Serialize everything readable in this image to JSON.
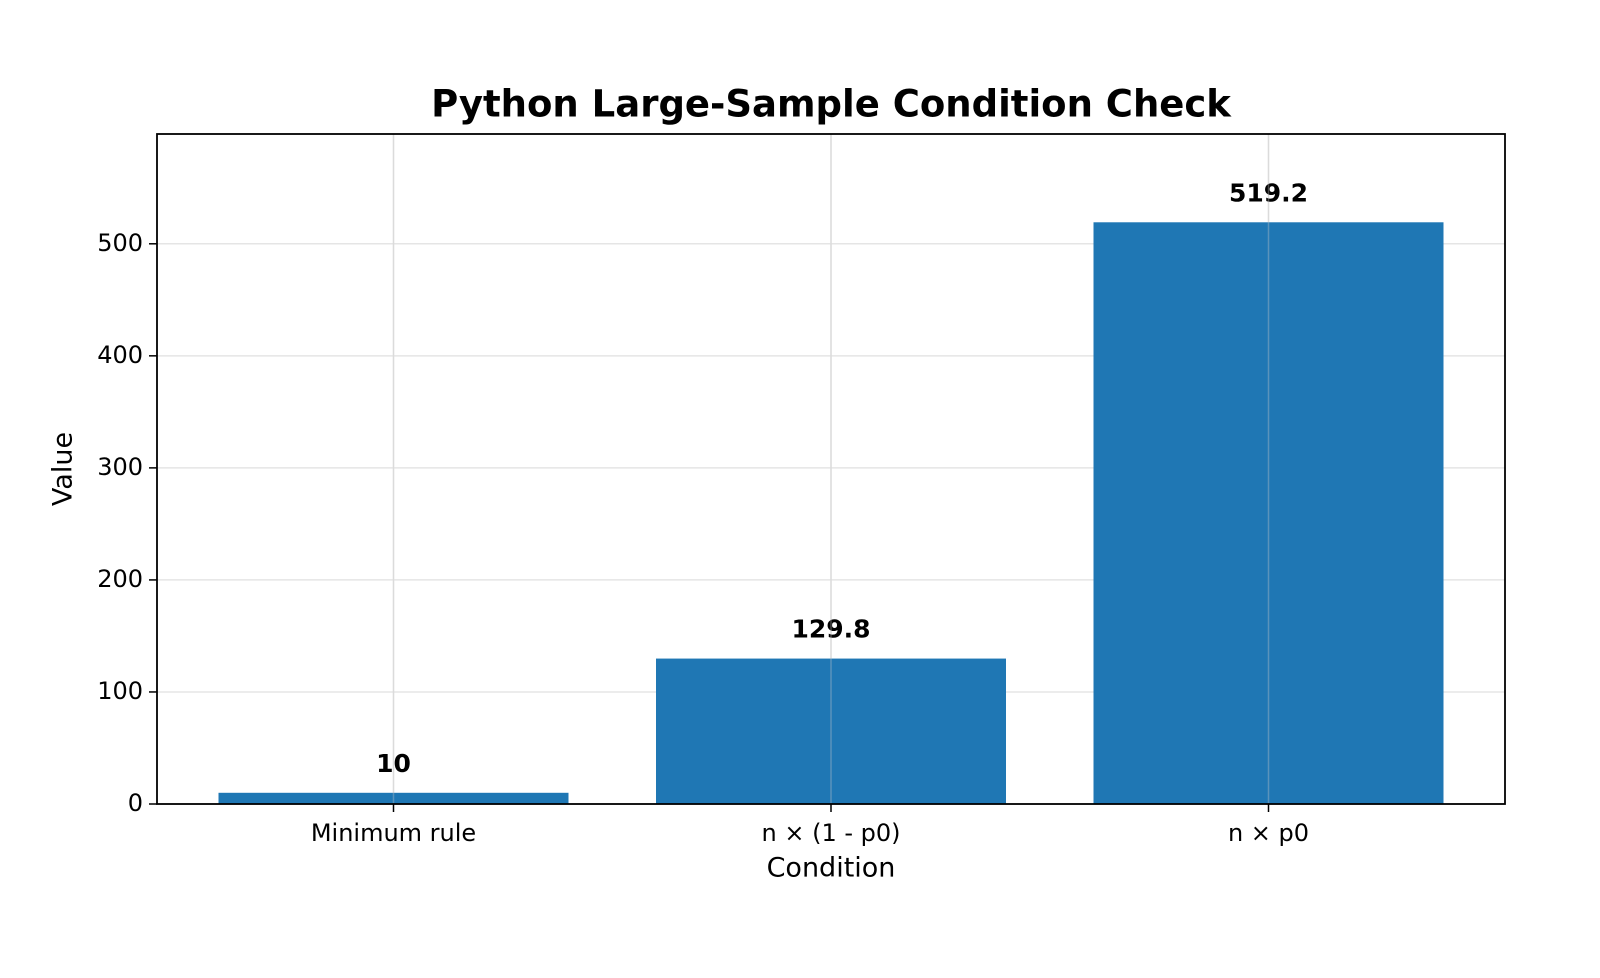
{
  "chart_data": {
    "type": "bar",
    "title": "Python Large-Sample Condition Check",
    "x_label": "Condition",
    "y_label": "Value",
    "categories": [
      "Minimum rule",
      "n × (1 - p0)",
      "n × p0"
    ],
    "values": [
      10,
      129.8,
      519.2
    ],
    "color": "#1f77b4",
    "ylim": [
      0,
      598
    ],
    "yticks": [
      0,
      100,
      200,
      300,
      400,
      500
    ],
    "grid": true
  }
}
